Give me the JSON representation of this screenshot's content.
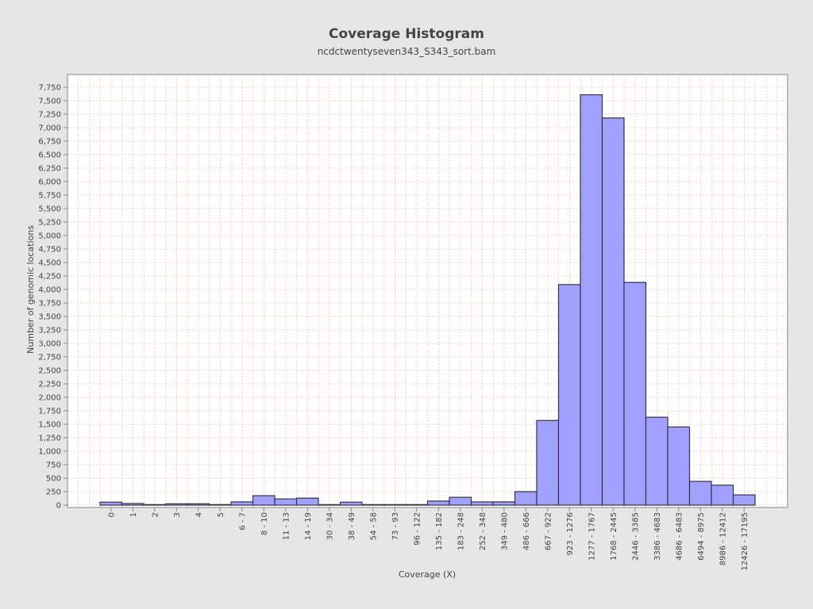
{
  "chart_data": {
    "type": "bar",
    "title": "Coverage Histogram",
    "subtitle": "ncdctwentyseven343_S343_sort.bam",
    "xlabel": "Coverage (X)",
    "ylabel": "Number of genomic locations",
    "ylim": [
      0,
      7800
    ],
    "y_tick_step": 250,
    "grid": true,
    "categories": [
      "0",
      "1",
      "2",
      "3",
      "4",
      "5",
      "6 - 7",
      "8 - 10",
      "11 - 13",
      "14 - 19",
      "30 - 34",
      "38 - 49",
      "54 - 58",
      "73 - 93",
      "96 - 122",
      "135 - 182",
      "183 - 248",
      "252 - 348",
      "349 - 480",
      "486 - 666",
      "667 - 922",
      "923 - 1276",
      "1277 - 1767",
      "1768 - 2445",
      "2446 - 3385",
      "3386 - 4683",
      "4686 - 6483",
      "6494 - 8975",
      "8986 - 12412",
      "12426 - 17195"
    ],
    "values": [
      55,
      30,
      10,
      25,
      25,
      10,
      60,
      175,
      115,
      130,
      10,
      55,
      10,
      10,
      10,
      75,
      145,
      60,
      60,
      250,
      1570,
      4090,
      7610,
      7180,
      4130,
      1630,
      1450,
      440,
      370,
      190
    ],
    "colors": {
      "bar_fill": "#a0a0ff",
      "bar_stroke": "#333344",
      "grid": "#f0c8a8",
      "plot_bg": "#ffffff",
      "page_bg": "#e6e6e6"
    }
  }
}
